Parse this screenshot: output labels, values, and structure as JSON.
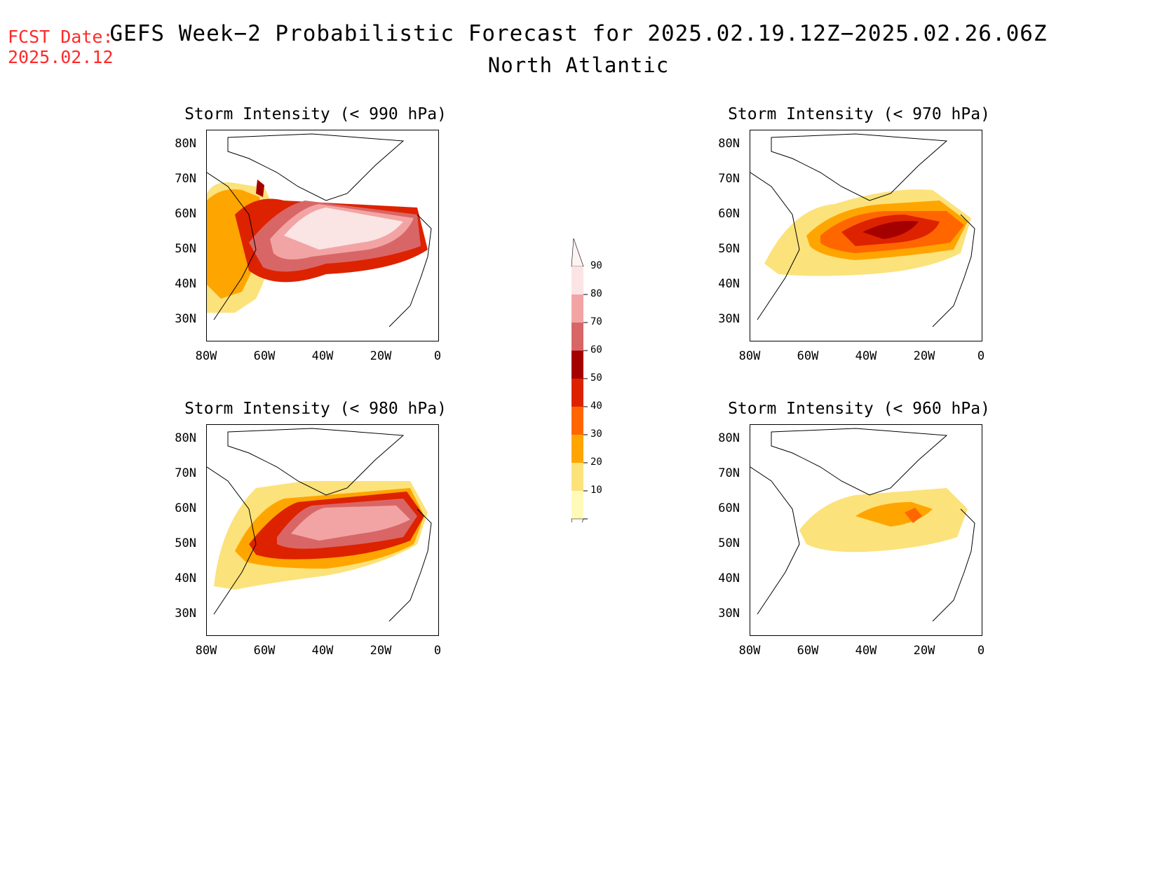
{
  "header": {
    "fcst_label": "FCST Date:",
    "fcst_date": "2025.02.12",
    "title": "GEFS Week−2 Probabilistic Forecast for 2025.02.19.12Z−2025.02.26.06Z",
    "region": "North Atlantic"
  },
  "axes": {
    "lat_ticks": [
      "80N",
      "70N",
      "60N",
      "50N",
      "40N",
      "30N"
    ],
    "lon_ticks": [
      "80W",
      "60W",
      "40W",
      "20W",
      "0"
    ]
  },
  "panels": [
    {
      "title": "Storm Intensity (< 990 hPa)"
    },
    {
      "title": "Storm Intensity (< 970 hPa)"
    },
    {
      "title": "Storm Intensity (< 980 hPa)"
    },
    {
      "title": "Storm Intensity (< 960 hPa)"
    }
  ],
  "colorbar": {
    "labels": [
      "90",
      "80",
      "70",
      "60",
      "50",
      "40",
      "30",
      "20",
      "10"
    ],
    "colors": [
      "#fbe4e4",
      "#f2a4a4",
      "#d96666",
      "#a50000",
      "#dd2200",
      "#ff6600",
      "#ffa500",
      "#fce27a",
      "#fffaba"
    ]
  }
}
